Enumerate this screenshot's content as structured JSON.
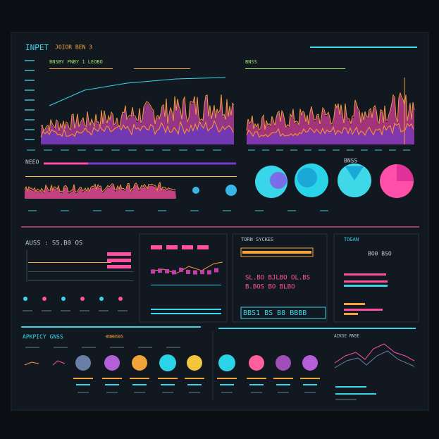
{
  "header": {
    "title": "INPET",
    "subtitle": "JOIOR BEN 3"
  },
  "panels": {
    "wave_a": "BNSBY FNBY 1 LEOBO",
    "wave_b": "BNSS",
    "row2_label": "NEEO",
    "pie_label": "BNSS",
    "stats": "AUSS : S5.B0 OS",
    "stocks": "TORN SYCKES",
    "stock_rows": [
      "SL.BO BJLBO OL.BS",
      "B.BOS BO BLBO"
    ],
    "stock_total": "BBS1 BS B8 BBBB",
    "togan": "TOGAN",
    "togan_value": "BO0 BSO",
    "activity": "APKPICY GNSS",
    "activity_sub": "BNBBSBS",
    "range": "AIKSE RNSE"
  }
}
